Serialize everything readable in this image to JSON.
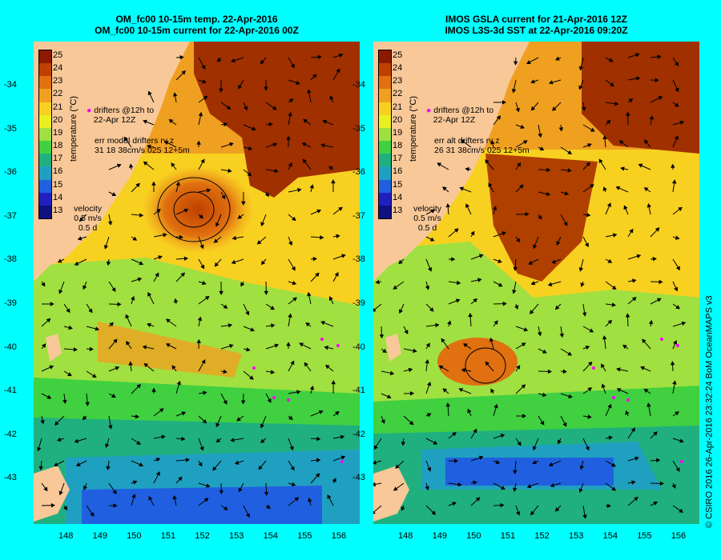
{
  "left_panel": {
    "title_line1": "OM_fc00 10-15m temp. 22-Apr-2016",
    "title_line2": "OM_fc00 10-15m current for 22-Apr-2016 00Z",
    "drifters_label": "drifters @12h to",
    "drifters_date": "22-Apr 12Z",
    "err_label": "err model drifters rv z",
    "err_values": "31 18 38cm/s 025 12+5m",
    "velocity_label": "velocity",
    "velocity_scale": "0.5 m/s",
    "velocity_time": "0.5 d"
  },
  "right_panel": {
    "title_line1": "IMOS GSLA current for 21-Apr-2016 12Z",
    "title_line2": "IMOS L3S-3d SST at 22-Apr-2016 09:20Z",
    "drifters_label": "drifters @12h to",
    "drifters_date": "22-Apr 12Z",
    "err_label": "err alt drifters rv z",
    "err_values": "26 31 38cm/s 025 12+5m",
    "velocity_label": "velocity",
    "velocity_scale": "0.5 m/s",
    "velocity_time": "0.5 d"
  },
  "colorbar": {
    "title": "temperature (°C)",
    "labels": [
      "25",
      "24",
      "23",
      "22",
      "21",
      "20",
      "19",
      "18",
      "17",
      "16",
      "15",
      "14",
      "13"
    ],
    "colors": [
      "#8b1a00",
      "#c04000",
      "#e07010",
      "#f0a020",
      "#f8d020",
      "#e8f020",
      "#a0e040",
      "#40d040",
      "#20b080",
      "#20a0c0",
      "#2060e0",
      "#2020c0",
      "#101080"
    ]
  },
  "lat_labels": [
    "-34",
    "-35",
    "-36",
    "-37",
    "-38",
    "-39",
    "-40",
    "-41",
    "-42",
    "-43"
  ],
  "lon_labels": [
    "148",
    "149",
    "150",
    "151",
    "152",
    "153",
    "154",
    "155",
    "156"
  ],
  "credit": "© CSIRO 2016   26-Apr-2016 23:32:24 BoM OceanMAPS v3",
  "colors": {
    "background": "#00ffff",
    "land": "#f8c898"
  }
}
